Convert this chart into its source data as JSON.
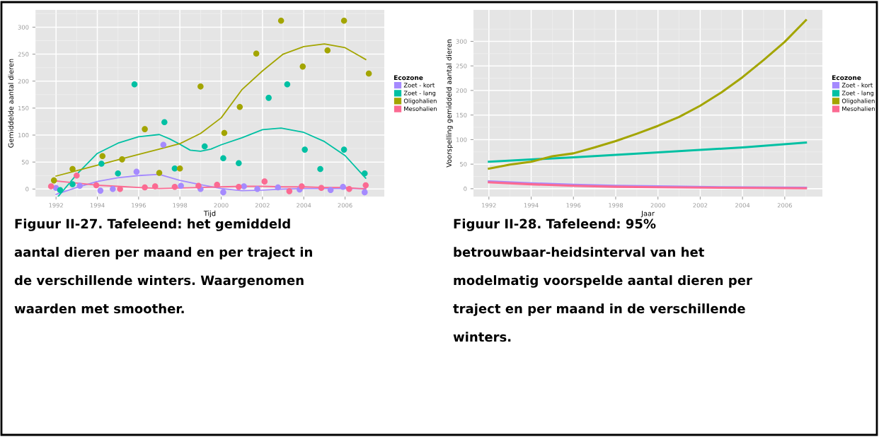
{
  "chart_data": [
    {
      "type": "scatter",
      "xlabel": "Tijd",
      "ylabel": "Gemiddelde aantal dieren",
      "legend_title": "Ecozone",
      "legend": "right",
      "grid": true,
      "xlim": [
        1991.0,
        2007.9
      ],
      "ylim": [
        -14,
        332
      ],
      "xticks": [
        1992,
        1994,
        1996,
        1998,
        2000,
        2002,
        2004,
        2006
      ],
      "yticks": [
        0,
        50,
        100,
        150,
        200,
        250,
        300
      ],
      "series": [
        {
          "name": "Zoet - kort",
          "color": "#a58afe",
          "type": "scatter",
          "marker": "circle",
          "x": [
            1992.0,
            1993.15,
            1994.15,
            1994.75,
            1995.9,
            1997.2,
            1998.05,
            1999.0,
            2000.1,
            2001.1,
            2001.75,
            2002.75,
            2003.8,
            2005.3,
            2005.9,
            2006.95
          ],
          "values": [
            2,
            6,
            -3,
            0,
            32,
            82,
            6,
            0,
            -6,
            5,
            0,
            3,
            -1,
            -2,
            4,
            -6
          ]
        },
        {
          "name": "Zoet - lang",
          "color": "#00c0a3",
          "type": "scatter",
          "marker": "circle",
          "x": [
            1992.2,
            1992.8,
            1994.2,
            1995.0,
            1995.8,
            1997.25,
            1997.75,
            1999.2,
            2000.1,
            2000.85,
            2002.3,
            2003.2,
            2004.05,
            2004.8,
            2005.95,
            2006.95
          ],
          "values": [
            -2,
            9,
            47,
            29,
            194,
            124,
            38,
            79,
            57,
            48,
            169,
            194,
            73,
            37,
            73,
            29
          ]
        },
        {
          "name": "Oligohalien",
          "color": "#a3a500",
          "type": "scatter",
          "marker": "circle",
          "x": [
            1991.9,
            1992.8,
            1994.25,
            1995.2,
            1996.3,
            1997.0,
            1998.0,
            1999.0,
            2000.15,
            2000.9,
            2001.7,
            2002.9,
            2003.95,
            2005.15,
            2005.95,
            2007.15
          ],
          "values": [
            16,
            37,
            61,
            55,
            111,
            30,
            38,
            190,
            104,
            152,
            251,
            312,
            227,
            257,
            312,
            214
          ]
        },
        {
          "name": "Mesohalien",
          "color": "#fb6a92",
          "type": "scatter",
          "marker": "circle",
          "x": [
            1991.76,
            1993.0,
            1993.95,
            1995.1,
            1996.3,
            1996.8,
            1997.75,
            1998.9,
            1999.8,
            2000.85,
            2002.1,
            2003.3,
            2003.9,
            2004.85,
            2006.2,
            2007.0
          ],
          "values": [
            5,
            25,
            7,
            0,
            3,
            5,
            4,
            6,
            8,
            4,
            14,
            -4,
            5,
            2,
            0,
            7
          ]
        },
        {
          "color": "#a58afe",
          "type": "line",
          "x": [
            1992,
            1993,
            1994,
            1995,
            1996,
            1997,
            1998,
            1999,
            2000,
            2001,
            2002,
            2003,
            2004,
            2005,
            2006,
            2007
          ],
          "values": [
            -10,
            3,
            14,
            21,
            25,
            27,
            16,
            8,
            1,
            -3,
            -2,
            0,
            1,
            1,
            1,
            1
          ]
        },
        {
          "color": "#00c0a3",
          "type": "line",
          "x": [
            1992.1,
            1993,
            1994,
            1995,
            1996,
            1997,
            1997.5,
            1998,
            1998.5,
            1999,
            1999.5,
            2000,
            2001,
            2002,
            2002.9,
            2004,
            2005,
            2006,
            2007
          ],
          "values": [
            -14,
            27,
            66,
            85,
            97,
            101,
            93,
            83,
            72,
            70,
            74,
            82,
            95,
            110,
            113,
            105,
            88,
            62,
            20
          ]
        },
        {
          "color": "#a3a500",
          "type": "line",
          "x": [
            1992,
            1993,
            1994,
            1996,
            1997,
            1998,
            1999,
            2000,
            2001,
            2002,
            2003,
            2004,
            2005,
            2006,
            2007
          ],
          "values": [
            24,
            34,
            44,
            64,
            74,
            84,
            103,
            132,
            184,
            219,
            250,
            264,
            269,
            262,
            240
          ]
        },
        {
          "color": "#fb6a92",
          "type": "line",
          "x": [
            1992,
            1993,
            1994,
            1995,
            1996,
            1997,
            1998,
            1999,
            2000,
            2001,
            2002,
            2003,
            2004,
            2005,
            2006,
            2007
          ],
          "values": [
            15,
            11,
            7,
            5,
            3,
            1,
            2,
            3,
            4,
            5,
            5,
            4,
            4,
            3,
            3,
            0
          ]
        }
      ],
      "annotations": [
        "Figuur II-27. Tafeleend: het gemiddeld",
        "aantal dieren per maand en per traject in",
        "de verschillende winters. Waargenomen",
        "waarden met smoother."
      ]
    },
    {
      "type": "line",
      "xlabel": "Jaar",
      "ylabel": "Voorspelling gemiddeld aantal dieren",
      "legend_title": "Ecozone",
      "legend": "right",
      "grid": true,
      "xlim": [
        1991.27,
        2007.78
      ],
      "ylim": [
        -16,
        364
      ],
      "xticks": [
        1992,
        1994,
        1996,
        1998,
        2000,
        2002,
        2004,
        2006
      ],
      "yticks": [
        0,
        50,
        100,
        150,
        200,
        250,
        300
      ],
      "series": [
        {
          "name": "Zoet - kort",
          "color": "#a58afe",
          "x": [
            1992,
            1994,
            1996,
            1998,
            2000,
            2003,
            2007
          ],
          "values": [
            15,
            11,
            8,
            6,
            5,
            3,
            2
          ]
        },
        {
          "name": "Zoet - lang",
          "color": "#00c0a3",
          "x": [
            1992,
            1996,
            2000,
            2004,
            2007
          ],
          "values": [
            55,
            64,
            74,
            84,
            94
          ]
        },
        {
          "name": "Oligohalien",
          "color": "#a3a500",
          "x": [
            1992,
            1993,
            1994,
            1995,
            1996,
            1997,
            1998,
            1999,
            2000,
            2001,
            2002,
            2003,
            2004,
            2005,
            2006,
            2007
          ],
          "values": [
            41,
            49,
            55,
            66,
            72,
            84,
            97,
            112,
            128,
            146,
            169,
            196,
            227,
            262,
            299,
            343
          ]
        },
        {
          "name": "Mesohalien",
          "color": "#fb6a92",
          "x": [
            1992,
            1994,
            1996,
            1998,
            2000,
            2003,
            2007
          ],
          "values": [
            13,
            9,
            6,
            4,
            3,
            2,
            1
          ]
        }
      ],
      "annotations": [
        "Figuur II-28. Tafeleend: 95%",
        "betrouwbaar-heidsinterval van het",
        "modelmatig voorspelde aantal dieren per",
        "traject en per maand in de verschillende",
        "winters."
      ]
    }
  ]
}
